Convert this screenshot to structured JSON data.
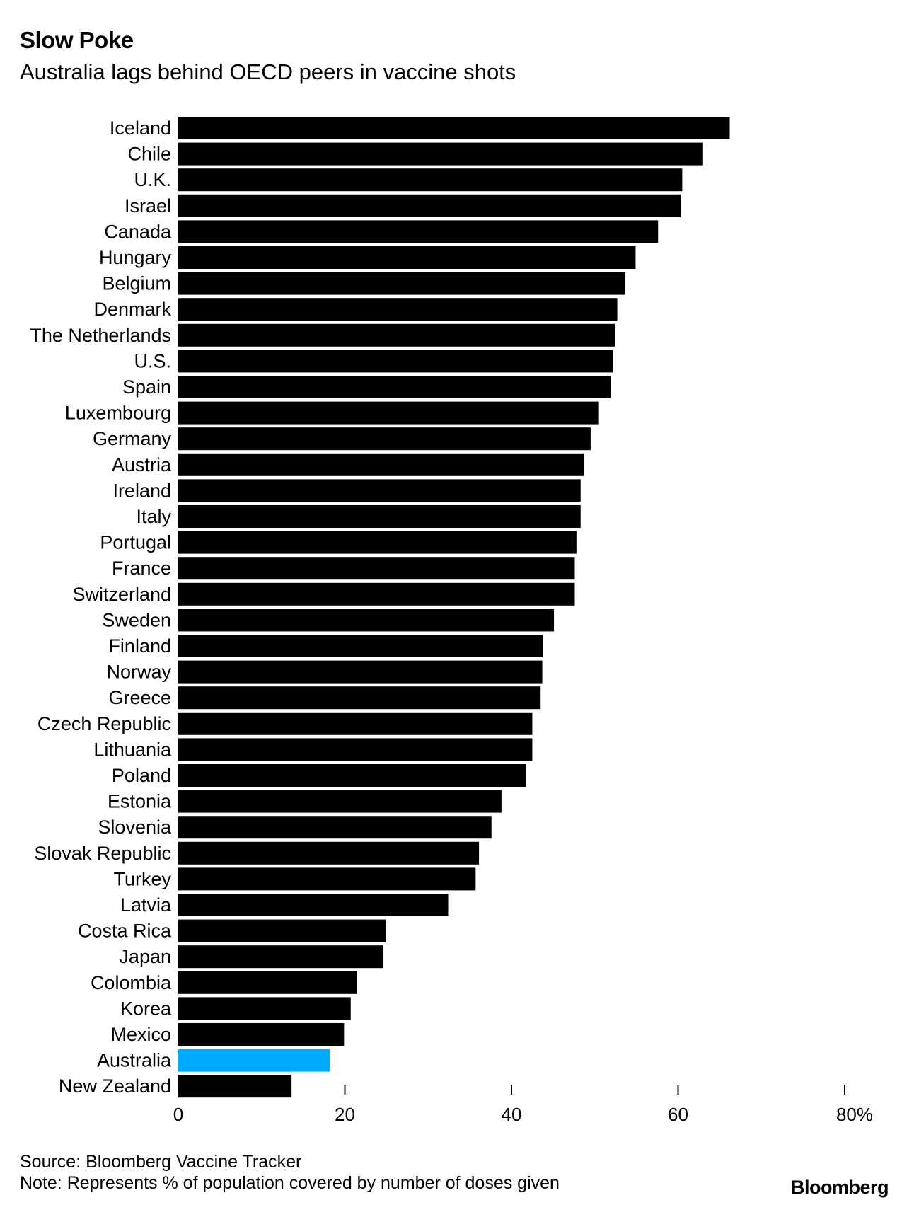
{
  "header": {
    "title": "Slow Poke",
    "subtitle": "Australia lags behind OECD peers in vaccine shots"
  },
  "footer": {
    "source": "Source: Bloomberg Vaccine Tracker",
    "note": "Note: Represents % of population covered by number of doses given",
    "brand": "Bloomberg"
  },
  "colors": {
    "bar": "#000000",
    "highlight": "#00aaff",
    "background": "#ffffff"
  },
  "chart_data": {
    "type": "bar",
    "orientation": "horizontal",
    "title": "Slow Poke",
    "subtitle": "Australia lags behind OECD peers in vaccine shots",
    "xlabel": "",
    "ylabel": "",
    "xlim": [
      0,
      80
    ],
    "xticks": [
      0,
      20,
      40,
      60,
      80
    ],
    "xtick_labels": [
      "0",
      "20",
      "40",
      "60",
      "80%"
    ],
    "highlight": "Australia",
    "categories": [
      "Iceland",
      "Chile",
      "U.K.",
      "Israel",
      "Canada",
      "Hungary",
      "Belgium",
      "Denmark",
      "The Netherlands",
      "U.S.",
      "Spain",
      "Luxembourg",
      "Germany",
      "Austria",
      "Ireland",
      "Italy",
      "Portugal",
      "France",
      "Switzerland",
      "Sweden",
      "Finland",
      "Norway",
      "Greece",
      "Czech Republic",
      "Lithuania",
      "Poland",
      "Estonia",
      "Slovenia",
      "Slovak Republic",
      "Turkey",
      "Latvia",
      "Costa Rica",
      "Japan",
      "Colombia",
      "Korea",
      "Mexico",
      "Australia",
      "New Zealand"
    ],
    "values": [
      66.2,
      63.0,
      60.5,
      60.3,
      57.6,
      54.9,
      53.6,
      52.7,
      52.4,
      52.2,
      51.9,
      50.5,
      49.5,
      48.7,
      48.3,
      48.3,
      47.8,
      47.6,
      47.6,
      45.1,
      43.8,
      43.7,
      43.5,
      42.5,
      42.5,
      41.7,
      38.8,
      37.6,
      36.1,
      35.7,
      32.4,
      24.9,
      24.6,
      21.4,
      20.7,
      19.9,
      18.2,
      13.6
    ]
  }
}
